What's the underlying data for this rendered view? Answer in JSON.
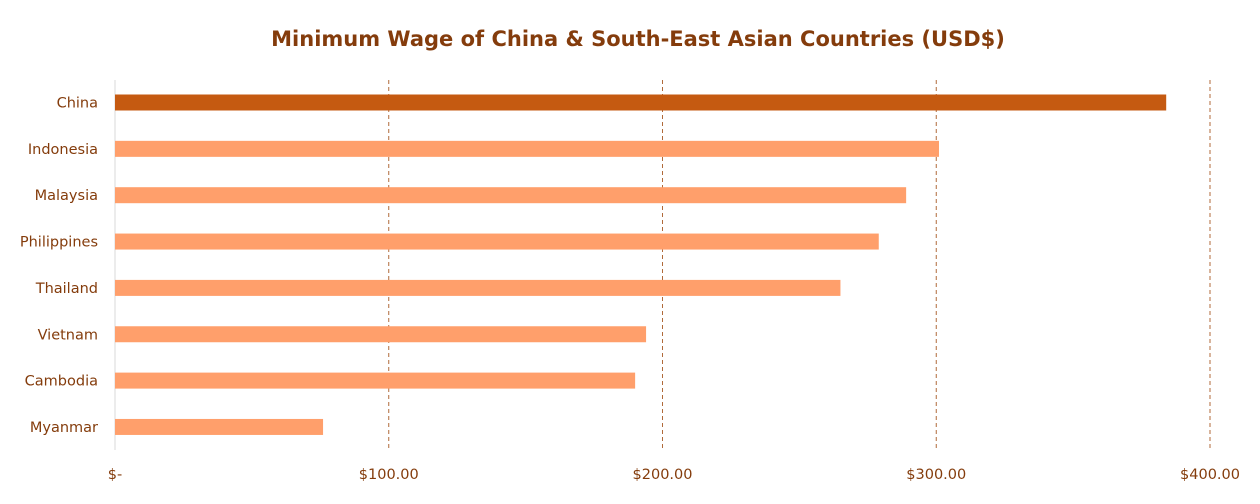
{
  "chart_data": {
    "type": "bar",
    "orientation": "horizontal",
    "title": "Minimum Wage of China & South-East Asian Countries (USD$)",
    "xlabel": "",
    "ylabel": "",
    "categories": [
      "China",
      "Indonesia",
      "Malaysia",
      "Philippines",
      "Thailand",
      "Vietnam",
      "Cambodia",
      "Myanmar"
    ],
    "values": [
      384,
      301,
      289,
      279,
      265,
      194,
      190,
      76
    ],
    "highlight_category": "China",
    "xlim": [
      0,
      400
    ],
    "x_ticks": [
      0,
      100,
      200,
      300,
      400
    ],
    "x_tick_labels": [
      "$-",
      "$100.00",
      "$200.00",
      "$300.00",
      "$400.00"
    ],
    "grid": "vertical dashed",
    "legend": "none"
  },
  "colors": {
    "title": "#843c0c",
    "labels": "#843c0c",
    "highlight_bar": "#c55a11",
    "bar": "#ff9f6b",
    "gridline": "#b06a3a",
    "axis": "#d9d9d9"
  }
}
